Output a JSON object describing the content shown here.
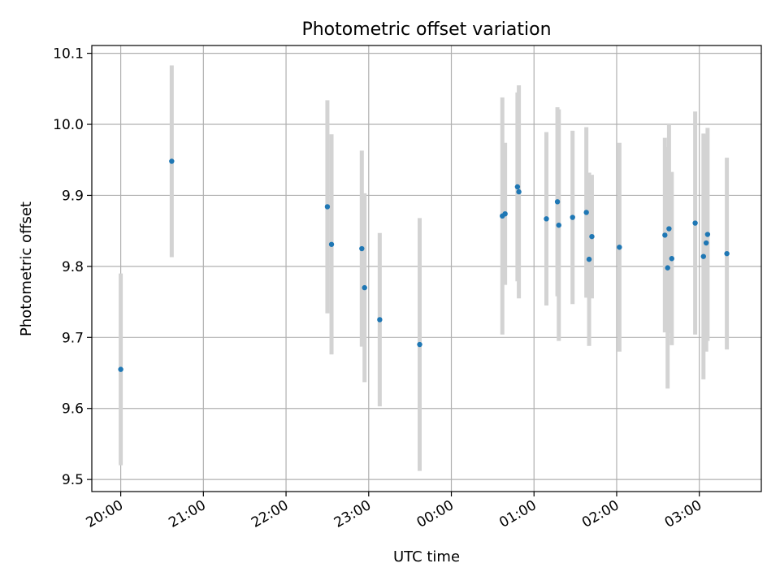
{
  "chart_data": {
    "type": "scatter",
    "title": "Photometric offset variation",
    "xlabel": "UTC time",
    "ylabel": "Photometric offset",
    "x_ticks": [
      "20:00",
      "21:00",
      "22:00",
      "23:00",
      "00:00",
      "01:00",
      "02:00",
      "03:00"
    ],
    "y_ticks": [
      "9.5",
      "9.6",
      "9.7",
      "9.8",
      "9.9",
      "10.0",
      "10.1"
    ],
    "xlim": [
      "19:39",
      "03:45"
    ],
    "ylim": [
      9.483,
      10.111
    ],
    "grid": true,
    "colors": {
      "marker": "#1f77b4",
      "errorbar": "#d3d3d3",
      "grid": "#b0b0b0"
    },
    "points": [
      {
        "x": "20:00",
        "y": 9.655,
        "err": 0.135
      },
      {
        "x": "20:37",
        "y": 9.948,
        "err": 0.135
      },
      {
        "x": "22:30",
        "y": 9.884,
        "err": 0.15
      },
      {
        "x": "22:33",
        "y": 9.831,
        "err": 0.155
      },
      {
        "x": "22:55",
        "y": 9.825,
        "err": 0.138
      },
      {
        "x": "22:57",
        "y": 9.77,
        "err": 0.133
      },
      {
        "x": "23:08",
        "y": 9.725,
        "err": 0.122
      },
      {
        "x": "23:37",
        "y": 9.69,
        "err": 0.178
      },
      {
        "x": "00:37",
        "y": 9.871,
        "err": 0.167
      },
      {
        "x": "00:39",
        "y": 9.874,
        "err": 0.1
      },
      {
        "x": "00:48",
        "y": 9.912,
        "err": 0.133
      },
      {
        "x": "00:49",
        "y": 9.905,
        "err": 0.15
      },
      {
        "x": "01:09",
        "y": 9.867,
        "err": 0.122
      },
      {
        "x": "01:17",
        "y": 9.891,
        "err": 0.133
      },
      {
        "x": "01:18",
        "y": 9.858,
        "err": 0.163
      },
      {
        "x": "01:28",
        "y": 9.869,
        "err": 0.122
      },
      {
        "x": "01:38",
        "y": 9.876,
        "err": 0.12
      },
      {
        "x": "01:40",
        "y": 9.81,
        "err": 0.122
      },
      {
        "x": "01:42",
        "y": 9.842,
        "err": 0.087
      },
      {
        "x": "02:02",
        "y": 9.827,
        "err": 0.147
      },
      {
        "x": "02:35",
        "y": 9.844,
        "err": 0.137
      },
      {
        "x": "02:37",
        "y": 9.798,
        "err": 0.17
      },
      {
        "x": "02:38",
        "y": 9.853,
        "err": 0.147
      },
      {
        "x": "02:40",
        "y": 9.811,
        "err": 0.122
      },
      {
        "x": "02:57",
        "y": 9.861,
        "err": 0.157
      },
      {
        "x": "03:03",
        "y": 9.814,
        "err": 0.173
      },
      {
        "x": "03:05",
        "y": 9.833,
        "err": 0.153
      },
      {
        "x": "03:06",
        "y": 9.845,
        "err": 0.15
      },
      {
        "x": "03:20",
        "y": 9.818,
        "err": 0.135
      }
    ]
  }
}
